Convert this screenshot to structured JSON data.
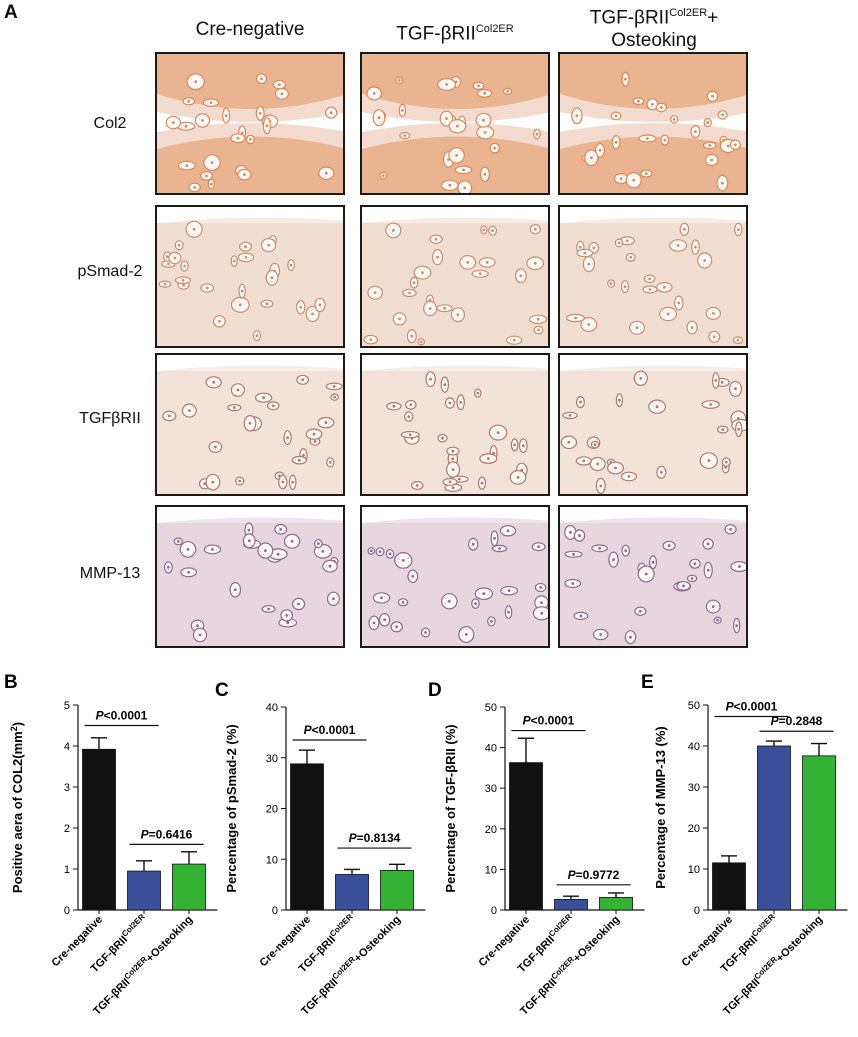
{
  "panel_a": {
    "letter": "A",
    "columns": [
      {
        "main": "Cre-negative",
        "sup": "",
        "extra": ""
      },
      {
        "main": "TGF-βRII",
        "sup": "Col2ER",
        "extra": ""
      },
      {
        "main": "TGF-βRII",
        "sup": "Col2ER",
        "extra": "+"
      }
    ],
    "column3_line2": "Osteoking",
    "rows": [
      "Col2",
      "pSmad-2",
      "TGFβRII",
      "MMP-13"
    ]
  },
  "chart_data": [
    {
      "type": "bar",
      "letter": "B",
      "ylabel": "Positive aera of COL2(mm",
      "ylabel_sup": "2",
      "ylabel_tail": ")",
      "ylim": [
        0,
        5
      ],
      "yticks": [
        0,
        1,
        2,
        3,
        4,
        5
      ],
      "categories": [
        "Cre-negative",
        "TGF-βRII^Col2ER",
        "TGF-βRII^Col2ER+Osteoking"
      ],
      "values": [
        3.92,
        0.95,
        1.12
      ],
      "errors": [
        0.28,
        0.25,
        0.3
      ],
      "colors": [
        "#111111",
        "#3a4f9a",
        "#33b233"
      ],
      "comparisons": [
        {
          "from": 0,
          "to": 1,
          "y": 4.5,
          "p": "0.0001",
          "op": "<"
        },
        {
          "from": 1,
          "to": 2,
          "y": 1.6,
          "p": "0.6416",
          "op": "="
        }
      ]
    },
    {
      "type": "bar",
      "letter": "C",
      "ylabel": "Percentage of pSmad-2 (%)",
      "ylabel_sup": "",
      "ylabel_tail": "",
      "ylim": [
        0,
        40
      ],
      "yticks": [
        0,
        10,
        20,
        30,
        40
      ],
      "categories": [
        "Cre-negative",
        "TGF-βRII^Col2ER",
        "TGF-βRII^Col2ER+Osteoking"
      ],
      "values": [
        28.8,
        7.0,
        7.8
      ],
      "errors": [
        2.7,
        1.0,
        1.2
      ],
      "colors": [
        "#111111",
        "#3a4f9a",
        "#33b233"
      ],
      "comparisons": [
        {
          "from": 0,
          "to": 1,
          "y": 33.5,
          "p": "0.0001",
          "op": "<"
        },
        {
          "from": 1,
          "to": 2,
          "y": 12.2,
          "p": "0.8134",
          "op": "="
        }
      ]
    },
    {
      "type": "bar",
      "letter": "D",
      "ylabel": "Percentage of TGF-βRII (%)",
      "ylabel_sup": "",
      "ylabel_tail": "",
      "ylim": [
        0,
        50
      ],
      "yticks": [
        0,
        10,
        20,
        30,
        40,
        50
      ],
      "categories": [
        "Cre-negative",
        "TGF-βRII^Col2ER",
        "TGF-βRII^Col2ER+Osteoking"
      ],
      "values": [
        36.3,
        2.6,
        3.1
      ],
      "errors": [
        6.0,
        0.8,
        1.1
      ],
      "colors": [
        "#111111",
        "#3a4f9a",
        "#33b233"
      ],
      "comparisons": [
        {
          "from": 0,
          "to": 1,
          "y": 44.2,
          "p": "0.0001",
          "op": "<"
        },
        {
          "from": 1,
          "to": 2,
          "y": 6.2,
          "p": "0.9772",
          "op": "="
        }
      ]
    },
    {
      "type": "bar",
      "letter": "E",
      "ylabel": "Percentage of MMP-13 (%)",
      "ylabel_sup": "",
      "ylabel_tail": "",
      "ylim": [
        0,
        50
      ],
      "yticks": [
        0,
        10,
        20,
        30,
        40,
        50
      ],
      "categories": [
        "Cre-negative",
        "TGF-βRII^Col2ER",
        "TGF-βRII^Col2ER+Osteoking"
      ],
      "values": [
        11.5,
        40.0,
        37.6
      ],
      "errors": [
        1.7,
        1.2,
        3.0
      ],
      "colors": [
        "#111111",
        "#3a4f9a",
        "#33b233"
      ],
      "comparisons": [
        {
          "from": 0,
          "to": 1,
          "y": 47.2,
          "p": "0.0001",
          "op": "<"
        },
        {
          "from": 1,
          "to": 2,
          "y": 43.6,
          "p": "0.2848",
          "op": "="
        }
      ]
    }
  ]
}
